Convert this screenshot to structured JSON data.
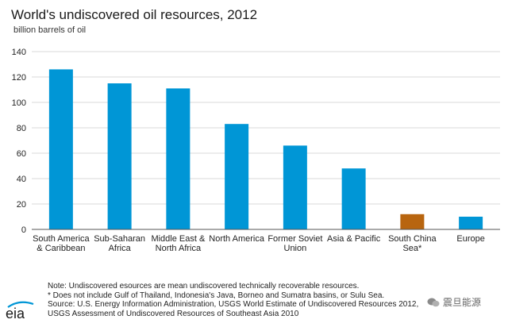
{
  "chart_data": {
    "type": "bar",
    "title": "World's undiscovered oil resources, 2012",
    "ylabel": "billion barrels of oil",
    "xlabel": "",
    "ylim": [
      0,
      140
    ],
    "yticks": [
      0,
      20,
      40,
      60,
      80,
      100,
      120,
      140
    ],
    "grid": true,
    "categories": [
      [
        "South America",
        "& Caribbean"
      ],
      [
        "Sub-Saharan",
        "Africa"
      ],
      [
        "Middle East &",
        "North Africa"
      ],
      [
        "North America"
      ],
      [
        "Former Soviet",
        "Union"
      ],
      [
        "Asia & Pacific"
      ],
      [
        "South China",
        "Sea*"
      ],
      [
        "Europe"
      ]
    ],
    "values": [
      126,
      115,
      111,
      83,
      66,
      48,
      12,
      10
    ],
    "colors": [
      "#0096d6",
      "#0096d6",
      "#0096d6",
      "#0096d6",
      "#0096d6",
      "#0096d6",
      "#b8650f",
      "#0096d6"
    ]
  },
  "notes": [
    "Note: Undiscovered esources are mean undiscovered technically recoverable resources.",
    "* Does not include Gulf of Thailand, Indonesia's Java, Borneo and Sumatra basins, or Sulu Sea.",
    "Source: U.S. Energy Information Administration, USGS World Estimate of Undiscovered Resources 2012,",
    "USGS Assessment of Undiscovered Resources of Southeast Asia 2010"
  ],
  "logo_text": "eia",
  "watermark": "震旦能源",
  "colors": {
    "bar": "#0096d6",
    "highlight": "#b8650f",
    "grid": "#d9d9d9"
  }
}
